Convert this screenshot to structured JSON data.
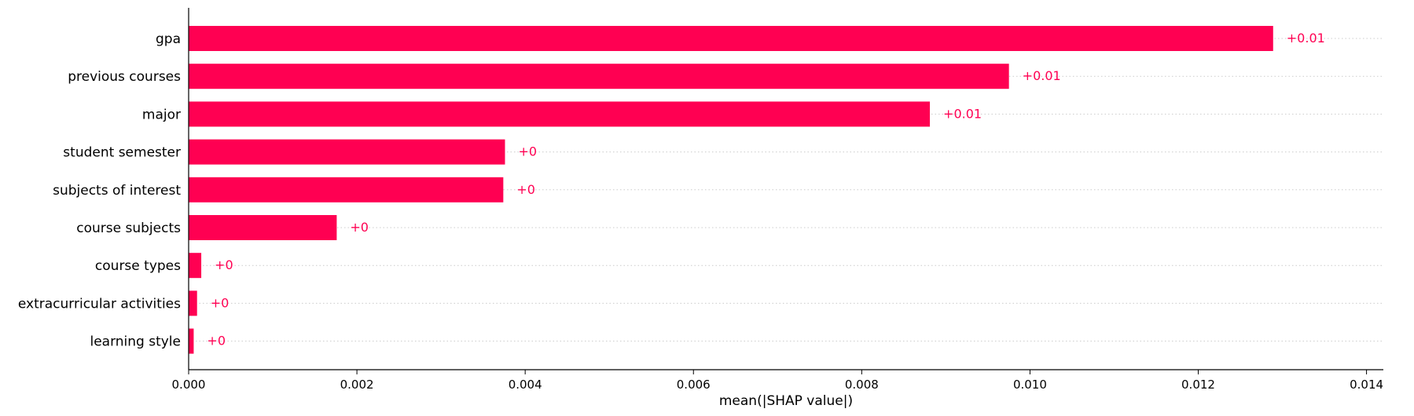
{
  "chart_data": {
    "type": "bar",
    "orientation": "horizontal",
    "categories": [
      "gpa",
      "previous courses",
      "major",
      "student semester",
      "subjects of interest",
      "course subjects",
      "course types",
      "extracurricular activities",
      "learning style"
    ],
    "values": [
      0.01289,
      0.00975,
      0.00881,
      0.00376,
      0.00374,
      0.00176,
      0.00015,
      0.0001,
      6e-05
    ],
    "data_labels": [
      "+0.01",
      "+0.01",
      "+0.01",
      "+0",
      "+0",
      "+0",
      "+0",
      "+0",
      "+0"
    ],
    "xlabel": "mean(|SHAP value|)",
    "xlim": [
      0,
      0.0142
    ],
    "xticks": [
      0,
      0.002,
      0.004,
      0.006,
      0.008,
      0.01,
      0.012,
      0.014
    ],
    "xtick_labels": [
      "0.000",
      "0.002",
      "0.004",
      "0.006",
      "0.008",
      "0.010",
      "0.012",
      "0.014"
    ],
    "grid": "horizontal dotted per bar",
    "bar_color": "#ff0052",
    "label_color": "#ff0052",
    "axis_color": "#000000",
    "grid_color": "#cccccc"
  }
}
